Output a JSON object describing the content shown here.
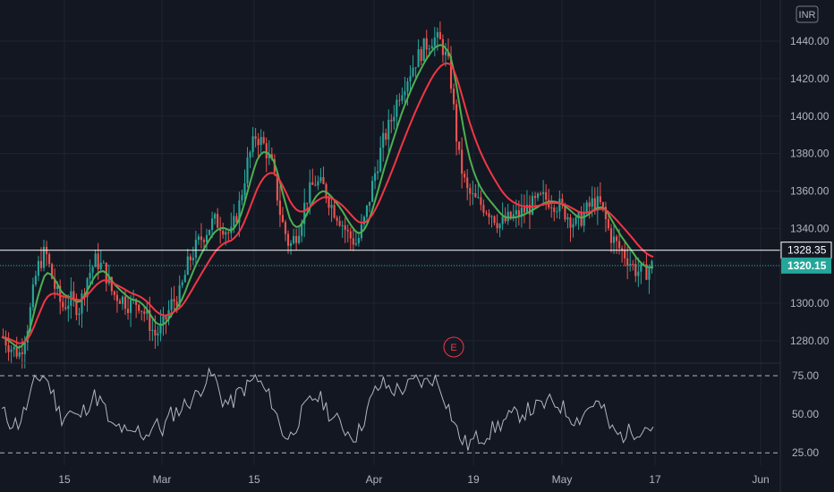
{
  "currency": "INR",
  "earnings_marker": "E",
  "chart_data": [
    {
      "type": "candlestick",
      "title": "",
      "xlabel": "",
      "ylabel": "",
      "y_ticks": [
        1280,
        1300,
        1320,
        1340,
        1360,
        1380,
        1400,
        1420,
        1440
      ],
      "y_tick_labels": [
        "1280.00",
        "1300.00",
        "1320.00",
        "1340.00",
        "1360.00",
        "1380.00",
        "1400.00",
        "1420.00",
        "1440.00"
      ],
      "ylim": [
        1268,
        1462
      ],
      "x_tick_labels": [
        "15",
        "Mar",
        "15",
        "Apr",
        "19",
        "May",
        "17",
        "Jun"
      ],
      "x_range": [
        "Feb 3",
        "Jun 6"
      ],
      "grid": true,
      "up_color": "#26a69a",
      "down_color": "#ef5350",
      "close_price": 1320.15,
      "close_price_label": "1320.15",
      "reference_price": 1328.35,
      "reference_price_label": "1328.35",
      "close_approx": [
        1282,
        1276,
        1273,
        1290,
        1318,
        1328,
        1310,
        1298,
        1302,
        1297,
        1314,
        1323,
        1318,
        1305,
        1303,
        1299,
        1301,
        1293,
        1283,
        1288,
        1300,
        1305,
        1322,
        1331,
        1338,
        1344,
        1342,
        1336,
        1352,
        1375,
        1390,
        1384,
        1372,
        1345,
        1330,
        1339,
        1356,
        1365,
        1362,
        1352,
        1345,
        1336,
        1332,
        1346,
        1367,
        1385,
        1397,
        1412,
        1421,
        1430,
        1437,
        1442,
        1439,
        1425,
        1380,
        1360,
        1355,
        1352,
        1348,
        1342,
        1345,
        1347,
        1350,
        1353,
        1356,
        1355,
        1352,
        1347,
        1342,
        1348,
        1354,
        1352,
        1337,
        1330,
        1325,
        1318,
        1316,
        1320
      ],
      "moving_averages": [
        {
          "color": "#4caf50",
          "period": "short"
        },
        {
          "color": "#f23645",
          "period": "long"
        }
      ]
    },
    {
      "type": "line",
      "indicator": "oscillator",
      "y_ticks": [
        25,
        50,
        75
      ],
      "y_tick_labels": [
        "25.00",
        "50.00",
        "75.00"
      ],
      "ylim": [
        17,
        82
      ],
      "reference_lines": [
        25,
        75
      ],
      "line_color": "#b2b5be",
      "values_approx": [
        52,
        45,
        44,
        56,
        72,
        76,
        64,
        48,
        52,
        47,
        55,
        62,
        56,
        40,
        42,
        35,
        40,
        36,
        44,
        40,
        50,
        53,
        58,
        62,
        72,
        76,
        60,
        56,
        64,
        68,
        74,
        66,
        58,
        40,
        34,
        46,
        55,
        62,
        58,
        48,
        44,
        38,
        36,
        50,
        64,
        70,
        66,
        66,
        68,
        72,
        70,
        74,
        66,
        52,
        36,
        30,
        34,
        36,
        40,
        44,
        48,
        50,
        52,
        54,
        56,
        58,
        56,
        50,
        46,
        52,
        58,
        54,
        40,
        36,
        38,
        40,
        42,
        42
      ]
    }
  ]
}
